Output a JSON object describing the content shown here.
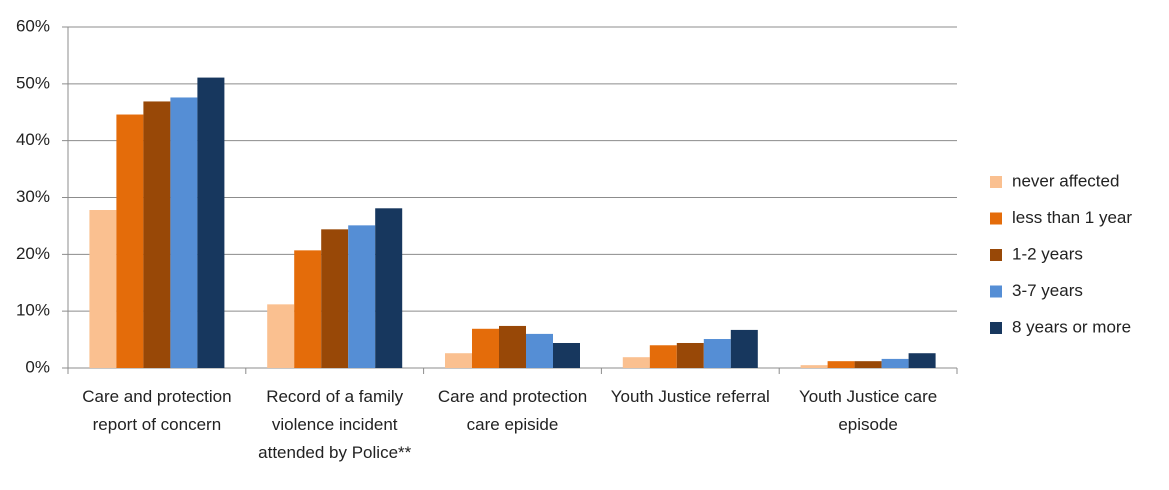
{
  "chart_data": {
    "type": "bar",
    "categories": [
      "Care and protection report of concern",
      "Record of a family violence incident attended by Police**",
      "Care and protection care episide",
      "Youth Justice referral",
      "Youth Justice care episode"
    ],
    "series": [
      {
        "name": "never affected",
        "color": "#fac090",
        "values": [
          27.8,
          11.2,
          2.6,
          1.9,
          0.5
        ]
      },
      {
        "name": "less than 1 year",
        "color": "#e46c0a",
        "values": [
          44.6,
          20.7,
          6.9,
          4.0,
          1.2
        ]
      },
      {
        "name": "1-2 years",
        "color": "#984807",
        "values": [
          46.9,
          24.4,
          7.4,
          4.4,
          1.2
        ]
      },
      {
        "name": "3-7 years",
        "color": "#558ed5",
        "values": [
          47.6,
          25.1,
          6.0,
          5.1,
          1.6
        ]
      },
      {
        "name": "8 years or more",
        "color": "#17375e",
        "values": [
          51.1,
          28.1,
          4.4,
          6.7,
          2.6
        ]
      }
    ],
    "ylim": [
      0,
      60
    ],
    "yticks": [
      {
        "value": 0,
        "label": "0%"
      },
      {
        "value": 10,
        "label": "10%"
      },
      {
        "value": 20,
        "label": "20%"
      },
      {
        "value": 30,
        "label": "30%"
      },
      {
        "value": 40,
        "label": "40%"
      },
      {
        "value": 50,
        "label": "50%"
      },
      {
        "value": 60,
        "label": "60%"
      }
    ],
    "grid": true,
    "legend": "right"
  }
}
